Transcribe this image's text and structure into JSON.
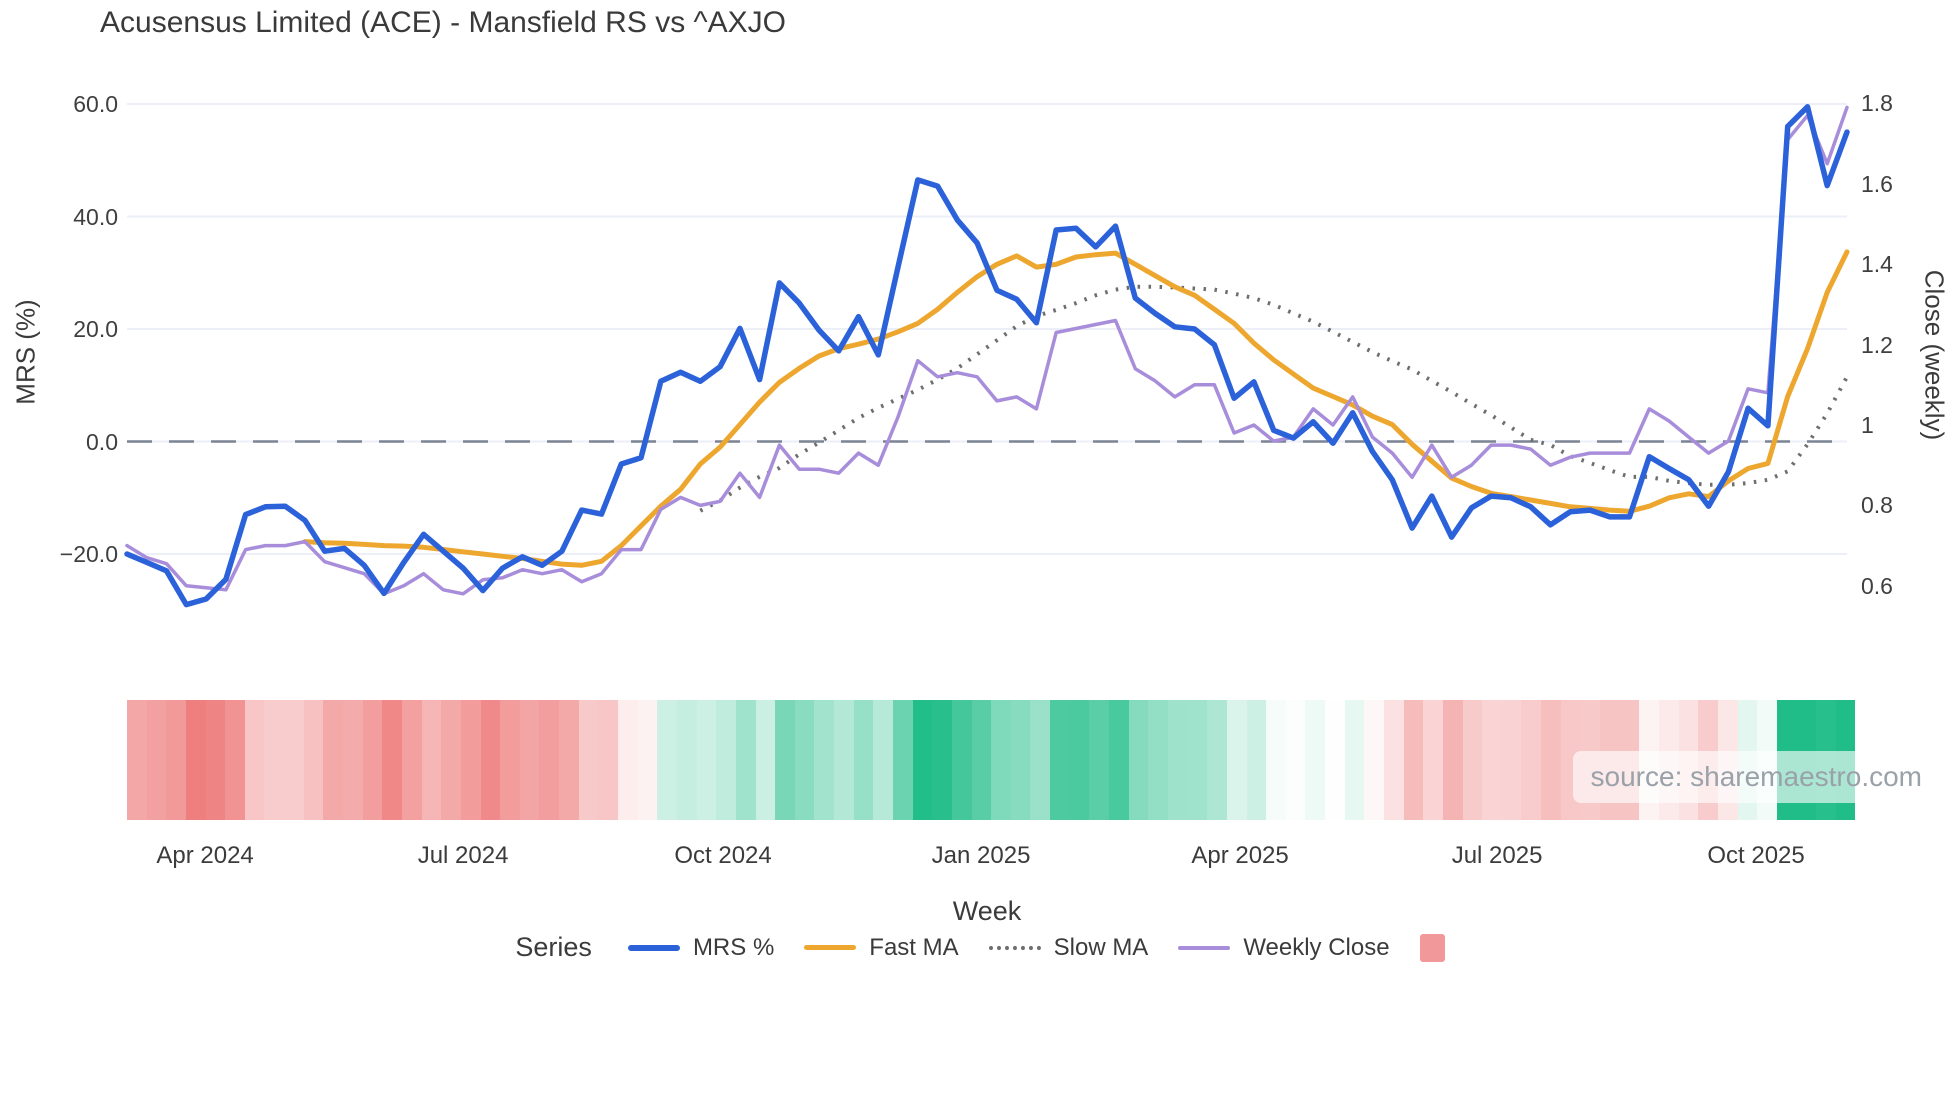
{
  "title": "Acusensus Limited (ACE) - Mansfield RS vs ^AXJO",
  "watermark": "source: sharemaestro.com",
  "colors": {
    "mrs_blue": "#2c62d9",
    "fast_ma_orange": "#eda72f",
    "slow_ma_gray": "#6e6e6e",
    "weekly_close_purple": "#a88ddb",
    "zero_line": "#7a8494",
    "gridline": "#edeff8",
    "heat_positive_full": "#20bd88",
    "heat_negative_full": "#ee7b7b",
    "legend_heat_swatch": "#f1999a",
    "text": "#3b3b3b"
  },
  "axes": {
    "left": {
      "title": "MRS (%)",
      "ticks": [
        "60.0",
        "40.0",
        "20.0",
        "0.0",
        "−20.0"
      ],
      "tick_values": [
        60,
        40,
        20,
        0,
        -20
      ]
    },
    "right": {
      "title": "Close (weekly)",
      "ticks": [
        "1.8",
        "1.6",
        "1.4",
        "1.2",
        "1",
        "0.8",
        "0.6"
      ],
      "tick_values": [
        1.8,
        1.6,
        1.4,
        1.2,
        1,
        0.8,
        0.6
      ]
    },
    "x": {
      "title": "Week",
      "ticks": [
        "Apr 2024",
        "Jul 2024",
        "Oct 2024",
        "Jan 2025",
        "Apr 2025",
        "Jul 2025",
        "Oct 2025"
      ],
      "tick_week_index": [
        3.95,
        17.0,
        30.15,
        43.2,
        56.3,
        69.3,
        82.4
      ]
    }
  },
  "legend": {
    "label": "Series",
    "items": [
      {
        "name": "MRS %",
        "color": "#2c62d9",
        "style": "solid",
        "thickness": 6
      },
      {
        "name": "Fast MA",
        "color": "#eda72f",
        "style": "solid",
        "thickness": 5
      },
      {
        "name": "Slow MA",
        "color": "#6e6e6e",
        "style": "dotted",
        "thickness": 4
      },
      {
        "name": "Weekly Close",
        "color": "#a88ddb",
        "style": "solid",
        "thickness": 4
      }
    ],
    "heat_swatch_color": "#f1999a"
  },
  "chart_data": {
    "type": "line",
    "title": "Acusensus Limited (ACE) - Mansfield RS vs ^AXJO",
    "xlabel": "Week",
    "ylabel_left": "MRS (%)",
    "ylabel_right": "Close (weekly)",
    "ylim_left": [
      -32,
      63
    ],
    "ylim_right": [
      0.52,
      1.84
    ],
    "x_unit": "weekly, Mar 2024 - Nov 2025",
    "weeks": 88,
    "grid": true,
    "legend_position": "bottom",
    "zero_reference_line": {
      "axis": "left",
      "value": 0,
      "style": "long-dash"
    },
    "series": [
      {
        "name": "MRS %",
        "axis": "left",
        "color": "#2c62d9",
        "width": 5.5,
        "dash": "solid",
        "values": [
          -20,
          -21.5,
          -23,
          -29,
          -28,
          -24.5,
          -13,
          -11.6,
          -11.5,
          -14,
          -19.5,
          -19,
          -22,
          -27,
          -21.5,
          -16.5,
          -19.5,
          -22.5,
          -26.5,
          -22.5,
          -20.5,
          -22,
          -19.5,
          -12.2,
          -12.9,
          -4,
          -2.9,
          10.7,
          12.3,
          10.7,
          13.3,
          20.1,
          11,
          28.2,
          24.6,
          19.8,
          16.1,
          22.2,
          15.4,
          31,
          46.5,
          45.4,
          39.4,
          35.3,
          26.9,
          25.3,
          21.1,
          37.6,
          37.9,
          34.6,
          38.3,
          25.5,
          22.8,
          20.4,
          20,
          17.2,
          7.7,
          10.6,
          2,
          0.6,
          3.5,
          -0.3,
          5.1,
          -1.8,
          -6.8,
          -15.4,
          -9.7,
          -17,
          -11.8,
          -9.7,
          -10,
          -11.6,
          -14.8,
          -12.5,
          -12.2,
          -13.4,
          -13.4,
          -2.7,
          -4.8,
          -6.8,
          -11.5,
          -5.4,
          5.9,
          2.8,
          56,
          59.5,
          45.5,
          55
        ]
      },
      {
        "name": "Fast MA",
        "axis": "left",
        "color": "#eda72f",
        "width": 5,
        "dash": "solid",
        "values": [
          null,
          null,
          null,
          null,
          null,
          null,
          null,
          null,
          null,
          -17.8,
          -18,
          -18.1,
          -18.3,
          -18.5,
          -18.6,
          -18.8,
          -19.2,
          -19.6,
          -20,
          -20.4,
          -20.8,
          -21.3,
          -21.8,
          -22,
          -21.3,
          -18.5,
          -15,
          -11.5,
          -8.5,
          -4,
          -1,
          3,
          7,
          10.5,
          13,
          15.2,
          16.5,
          17.3,
          18.2,
          19.5,
          21,
          23.5,
          26.5,
          29.3,
          31.5,
          33,
          31,
          31.5,
          32.8,
          33.2,
          33.5,
          31.5,
          29.5,
          27.5,
          26,
          23.5,
          21,
          17.5,
          14.5,
          12,
          9.5,
          8,
          6.5,
          4.5,
          3,
          -0.5,
          -3.5,
          -6.5,
          -8,
          -9.2,
          -9.8,
          -10.4,
          -11,
          -11.6,
          -11.9,
          -12.2,
          -12.4,
          -11.5,
          -10,
          -9.3,
          -9.8,
          -7,
          -4.8,
          -3.9,
          8,
          16.5,
          26.5,
          33.7
        ]
      },
      {
        "name": "Slow MA",
        "axis": "left",
        "color": "#6e6e6e",
        "width": 4,
        "dash": "dotted",
        "values": [
          null,
          null,
          null,
          null,
          null,
          null,
          null,
          null,
          null,
          null,
          null,
          null,
          null,
          null,
          null,
          null,
          null,
          null,
          null,
          null,
          null,
          null,
          null,
          null,
          null,
          null,
          null,
          null,
          null,
          -12.3,
          -10.5,
          -8.2,
          -6.3,
          -4.7,
          -2.3,
          -0.2,
          2,
          4.2,
          6,
          7.6,
          9.2,
          11,
          13,
          15.5,
          18,
          20.5,
          22.3,
          23.4,
          24.6,
          26,
          27,
          27.5,
          27.5,
          27.4,
          27.2,
          27,
          26.3,
          25.5,
          24.3,
          22.8,
          21.3,
          19.5,
          17.7,
          15.9,
          14.3,
          12.8,
          10.8,
          8.8,
          6.7,
          4.7,
          2.5,
          0.3,
          -0.6,
          -2.6,
          -3.8,
          -5.1,
          -6.3,
          -6.3,
          -7,
          -7.4,
          -7.7,
          -7.7,
          -7.4,
          -6.8,
          -5.3,
          -0.5,
          5,
          11.5
        ]
      },
      {
        "name": "Weekly Close",
        "axis": "right",
        "color": "#a88ddb",
        "width": 3.5,
        "dash": "solid",
        "values": [
          0.7,
          0.67,
          0.655,
          0.6,
          0.595,
          0.59,
          0.69,
          0.7,
          0.7,
          0.71,
          0.66,
          0.645,
          0.63,
          0.58,
          0.6,
          0.63,
          0.59,
          0.58,
          0.615,
          0.62,
          0.64,
          0.63,
          0.64,
          0.61,
          0.63,
          0.69,
          0.69,
          0.79,
          0.82,
          0.8,
          0.81,
          0.88,
          0.82,
          0.95,
          0.89,
          0.89,
          0.88,
          0.93,
          0.9,
          1.02,
          1.16,
          1.12,
          1.13,
          1.12,
          1.06,
          1.07,
          1.04,
          1.23,
          1.24,
          1.25,
          1.26,
          1.14,
          1.11,
          1.07,
          1.1,
          1.1,
          0.98,
          1.0,
          0.96,
          0.97,
          1.04,
          1.0,
          1.07,
          0.97,
          0.93,
          0.87,
          0.95,
          0.87,
          0.9,
          0.95,
          0.95,
          0.94,
          0.9,
          0.92,
          0.93,
          0.93,
          0.93,
          1.04,
          1.01,
          0.97,
          0.93,
          0.96,
          1.09,
          1.08,
          1.71,
          1.77,
          1.65,
          1.79
        ]
      }
    ],
    "heat_strip": {
      "source_series": "MRS %",
      "description": "weekly color band below chart: red for negative MRS, green for positive, intensity by magnitude",
      "negative_full_color_at": -30,
      "positive_full_color_at": 47
    }
  }
}
